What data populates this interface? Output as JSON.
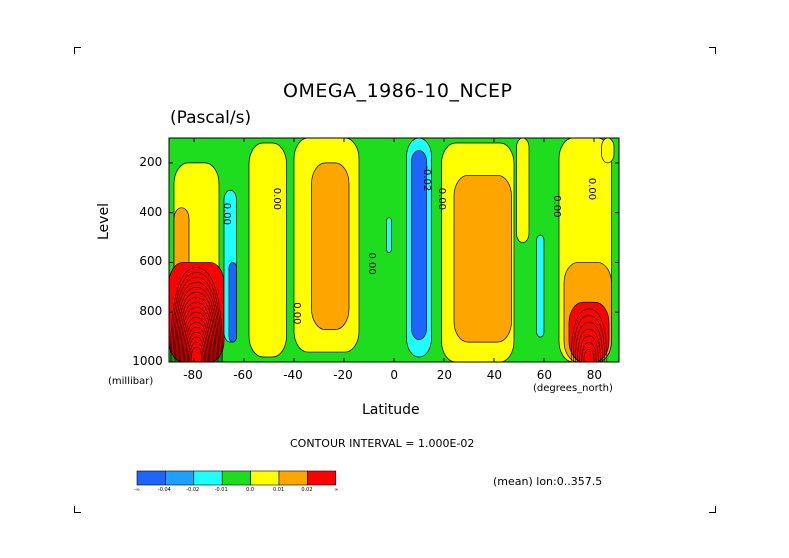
{
  "chart_data": {
    "type": "heatmap",
    "title": "OMEGA_1986-10_NCEP",
    "subtitle": "(Pascal/s)",
    "xlabel": "Latitude",
    "ylabel": "Level",
    "x_unit": "(degrees_north)",
    "y_unit": "(millibar)",
    "xlim": [
      -90,
      90
    ],
    "ylim": [
      1000,
      100
    ],
    "x_ticks": [
      "-80",
      "-60",
      "-40",
      "-20",
      "0",
      "20",
      "40",
      "60",
      "80"
    ],
    "y_ticks": [
      "200",
      "400",
      "600",
      "800",
      "1000"
    ],
    "contour_interval_text": "CONTOUR INTERVAL = 1.000E-02",
    "footer_text": "(mean) lon:0..357.5",
    "contour_labels": [
      "0.00",
      "0.00",
      "0.00",
      "0.00",
      "-0.02",
      "0.00",
      "0.00",
      "0.00"
    ],
    "colorbar": {
      "colors": [
        "#1e64ff",
        "#1ea0ff",
        "#1effff",
        "#1edc1e",
        "#ffff00",
        "#ffa500",
        "#ff0000"
      ],
      "labels": [
        "-∞",
        "-0.04",
        "-0.02",
        "-0.01",
        "0.0",
        "0.01",
        "0.02",
        "∞"
      ]
    },
    "regions": [
      {
        "band": "green",
        "value": -0.01,
        "lat": [
          -90,
          90
        ],
        "lev": [
          100,
          1000
        ]
      },
      {
        "band": "yellow",
        "value": 0.0,
        "lat": [
          -88,
          -70
        ],
        "lev": [
          200,
          1000
        ]
      },
      {
        "band": "orange",
        "value": 0.01,
        "lat": [
          -88,
          -82
        ],
        "lev": [
          380,
          700
        ]
      },
      {
        "band": "red",
        "value": 0.02,
        "lat": [
          -90,
          -68
        ],
        "lev": [
          600,
          1000
        ]
      },
      {
        "band": "cyan",
        "value": -0.02,
        "lat": [
          -68,
          -63
        ],
        "lev": [
          310,
          920
        ]
      },
      {
        "band": "blue",
        "value": -0.04,
        "lat": [
          -66,
          -63
        ],
        "lev": [
          600,
          920
        ]
      },
      {
        "band": "yellow",
        "value": 0.0,
        "lat": [
          -58,
          -43
        ],
        "lev": [
          120,
          980
        ]
      },
      {
        "band": "yellow",
        "value": 0.0,
        "lat": [
          -40,
          -14
        ],
        "lev": [
          100,
          960
        ]
      },
      {
        "band": "orange",
        "value": 0.01,
        "lat": [
          -33,
          -18
        ],
        "lev": [
          200,
          870
        ]
      },
      {
        "band": "cyan",
        "value": -0.02,
        "lat": [
          -3,
          -1
        ],
        "lev": [
          420,
          560
        ]
      },
      {
        "band": "cyan",
        "value": -0.02,
        "lat": [
          5,
          15
        ],
        "lev": [
          100,
          980
        ]
      },
      {
        "band": "blue",
        "value": -0.04,
        "lat": [
          7,
          13
        ],
        "lev": [
          150,
          910
        ]
      },
      {
        "band": "yellow",
        "value": 0.0,
        "lat": [
          19,
          48
        ],
        "lev": [
          120,
          1000
        ]
      },
      {
        "band": "orange",
        "value": 0.01,
        "lat": [
          24,
          47
        ],
        "lev": [
          250,
          920
        ]
      },
      {
        "band": "yellow",
        "value": 0.0,
        "lat": [
          49,
          54
        ],
        "lev": [
          100,
          520
        ]
      },
      {
        "band": "cyan",
        "value": -0.02,
        "lat": [
          57,
          60
        ],
        "lev": [
          490,
          900
        ]
      },
      {
        "band": "yellow",
        "value": 0.0,
        "lat": [
          66,
          87
        ],
        "lev": [
          100,
          1000
        ]
      },
      {
        "band": "orange",
        "value": 0.01,
        "lat": [
          68,
          87
        ],
        "lev": [
          600,
          1000
        ]
      },
      {
        "band": "red",
        "value": 0.02,
        "lat": [
          70,
          86
        ],
        "lev": [
          760,
          1000
        ]
      },
      {
        "band": "yellow",
        "value": 0.0,
        "lat": [
          83,
          88
        ],
        "lev": [
          100,
          200
        ]
      }
    ]
  }
}
